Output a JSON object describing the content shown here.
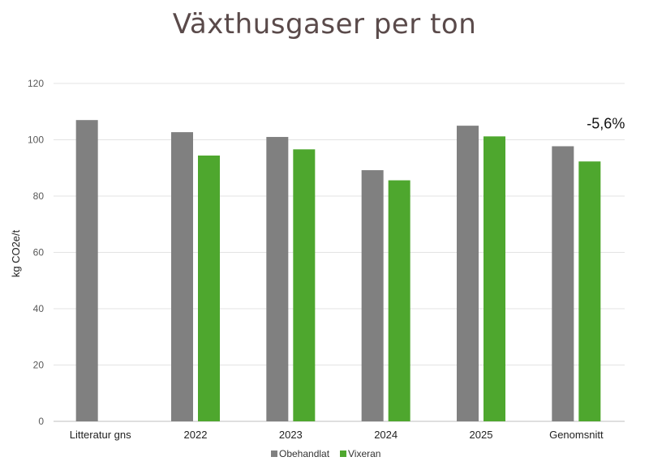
{
  "chart_data": {
    "type": "bar",
    "title": "Växthusgaser per ton",
    "ylabel": "kg CO2e/t",
    "xlabel": "",
    "ylim": [
      0,
      120
    ],
    "yticks": [
      0,
      20,
      40,
      60,
      80,
      100,
      120
    ],
    "grid": true,
    "legend_position": "bottom",
    "categories": [
      "Litteratur gns",
      "2022",
      "2023",
      "2024",
      "2025",
      "Genomsnitt"
    ],
    "series": [
      {
        "name": "Obehandlat",
        "color": "#808080",
        "values": [
          107,
          102.7,
          101,
          89.2,
          105,
          97.7
        ]
      },
      {
        "name": "Vixeran",
        "color": "#4ea72e",
        "values": [
          null,
          94.4,
          96.6,
          85.6,
          101.2,
          92.3
        ]
      }
    ],
    "annotation": {
      "text": "-5,6%",
      "category": "Genomsnitt"
    }
  }
}
